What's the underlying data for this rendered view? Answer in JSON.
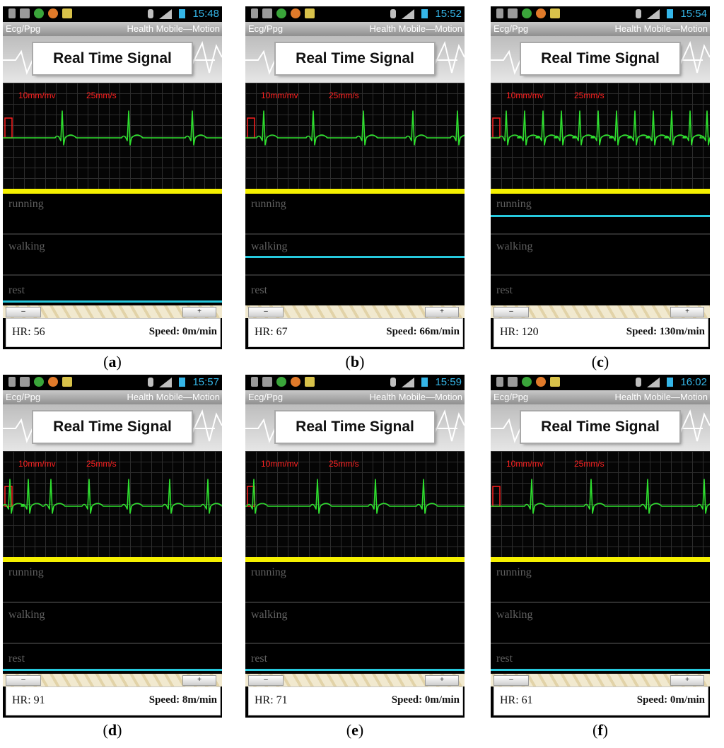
{
  "panels": [
    {
      "caption_letter": "a",
      "time": "15:48",
      "hr": "HR: 56",
      "speed": "Speed: 0m/min",
      "activity": "rest"
    },
    {
      "caption_letter": "b",
      "time": "15:52",
      "hr": "HR: 67",
      "speed": "Speed: 66m/min",
      "activity": "walking"
    },
    {
      "caption_letter": "c",
      "time": "15:54",
      "hr": "HR: 120",
      "speed": "Speed: 130m/min",
      "activity": "running"
    },
    {
      "caption_letter": "d",
      "time": "15:57",
      "hr": "HR: 91",
      "speed": "Speed: 8m/min",
      "activity": "rest"
    },
    {
      "caption_letter": "e",
      "time": "15:59",
      "hr": "HR: 71",
      "speed": "Speed: 0m/min",
      "activity": "rest"
    },
    {
      "caption_letter": "f",
      "time": "16:02",
      "hr": "HR: 61",
      "speed": "Speed: 0m/min",
      "activity": "rest"
    }
  ],
  "app": {
    "left_title": "Ecg/Ppg",
    "right_title": "Health Mobile—Motion",
    "banner": "Real Time Signal",
    "gain": "10mm/mv",
    "paper_speed": "25mm/s",
    "lanes": [
      "running",
      "walking",
      "rest"
    ],
    "minus_label": "–",
    "plus_label": "+"
  },
  "colors": {
    "ecg_trace": "#2fe02f",
    "activity_line": "#26c9dd",
    "separator": "#f5f000",
    "scale_text": "#ff2020",
    "clock": "#35b6e8"
  },
  "icons": [
    "usb-icon",
    "android-debug-icon",
    "app-green-icon",
    "app-orange-icon",
    "app-gallery-icon",
    "bluetooth-icon",
    "signal-icon",
    "battery-icon"
  ]
}
